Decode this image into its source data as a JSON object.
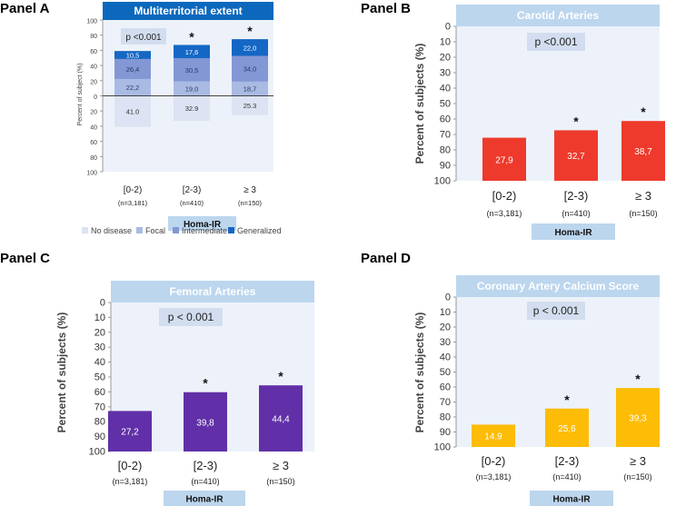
{
  "chart_data": [
    {
      "panel": "Panel A",
      "type": "bar",
      "stacked": true,
      "title": "Multiterritorial extent",
      "annotation": "p <0.001",
      "ylabel": "Percent of subject (%)",
      "ylim": [
        -100,
        100
      ],
      "yticks": [
        "100",
        "80",
        "60",
        "40",
        "20",
        "0",
        "20",
        "40",
        "60",
        "80",
        "100"
      ],
      "categories": [
        "[0-2)",
        "[2-3)",
        "≥ 3"
      ],
      "sample_sizes": [
        "(n=3,181)",
        "(n=410)",
        "(n=150)"
      ],
      "xlabel": "Homa-IR",
      "significance": [
        "",
        "*",
        "*"
      ],
      "negative_series": {
        "name": "No disease",
        "color": "#dde3f2",
        "values": [
          41.0,
          32.9,
          25.3
        ],
        "labels": [
          "41.0",
          "32.9",
          "25.3"
        ]
      },
      "series": [
        {
          "name": "Focal",
          "color": "#a9bbe3",
          "values": [
            22.2,
            19.0,
            18.7
          ],
          "labels": [
            "22,2",
            "19,0",
            "18,7"
          ]
        },
        {
          "name": "Intermediate",
          "color": "#8297d4",
          "values": [
            26.4,
            30.5,
            34.0
          ],
          "labels": [
            "26,4",
            "30,5",
            "34,0"
          ]
        },
        {
          "name": "Generalized",
          "color": "#1467c4",
          "values": [
            10.5,
            17.6,
            22.0
          ],
          "labels": [
            "10,5",
            "17,6",
            "22,0"
          ]
        }
      ],
      "legend": [
        "No disease",
        "Focal",
        "Intermediate",
        "Generalized"
      ]
    },
    {
      "panel": "Panel B",
      "type": "bar",
      "title": "Carotid Arteries",
      "annotation": "p <0.001",
      "ylabel": "Percent of subjects (%)",
      "ylim": [
        0,
        100
      ],
      "yticks": [
        "0",
        "10",
        "20",
        "30",
        "40",
        "50",
        "60",
        "70",
        "80",
        "90",
        "100"
      ],
      "categories": [
        "[0-2)",
        "[2-3)",
        "≥ 3"
      ],
      "sample_sizes": [
        "(n=3,181)",
        "(n=410)",
        "(n=150)"
      ],
      "xlabel": "Homa-IR",
      "significance": [
        "",
        "*",
        "*"
      ],
      "color": "#ee3a2c",
      "values": [
        27.9,
        32.7,
        38.7
      ],
      "labels": [
        "27,9",
        "32,7",
        "38,7"
      ]
    },
    {
      "panel": "Panel C",
      "type": "bar",
      "title": "Femoral Arteries",
      "annotation": "p < 0.001",
      "ylabel": "Percent of subjects (%)",
      "ylim": [
        0,
        100
      ],
      "yticks": [
        "0",
        "10",
        "20",
        "30",
        "40",
        "50",
        "60",
        "70",
        "80",
        "90",
        "100"
      ],
      "categories": [
        "[0-2)",
        "[2-3)",
        "≥ 3"
      ],
      "sample_sizes": [
        "(n=3,181)",
        "(n=410)",
        "(n=150)"
      ],
      "xlabel": "Homa-IR",
      "significance": [
        "",
        "*",
        "*"
      ],
      "color": "#6130a8",
      "values": [
        27.2,
        39.8,
        44.4
      ],
      "labels": [
        "27,2",
        "39,8",
        "44,4"
      ]
    },
    {
      "panel": "Panel D",
      "type": "bar",
      "title": "Coronary Artery Calcium Score",
      "annotation": "p < 0.001",
      "ylabel": "Percent of subjects (%)",
      "ylim": [
        0,
        100
      ],
      "yticks": [
        "0",
        "10",
        "20",
        "30",
        "40",
        "50",
        "60",
        "70",
        "80",
        "90",
        "100"
      ],
      "categories": [
        "[0-2)",
        "[2-3)",
        "≥ 3"
      ],
      "sample_sizes": [
        "(n=3,181)",
        "(n=410)",
        "(n=150)"
      ],
      "xlabel": "Homa-IR",
      "significance": [
        "",
        "*",
        "*"
      ],
      "color": "#fdbc05",
      "values": [
        14.9,
        25.6,
        39.3
      ],
      "labels": [
        "14,9",
        "25,6",
        "39,3"
      ]
    }
  ],
  "colors": {
    "title_bar_dark": "#0b68bd",
    "title_bar_light": "#bcd6ee",
    "plot_bg": "#edf2fa",
    "pval_box": "#d2deef",
    "homa_box": "#bcd6ee"
  }
}
